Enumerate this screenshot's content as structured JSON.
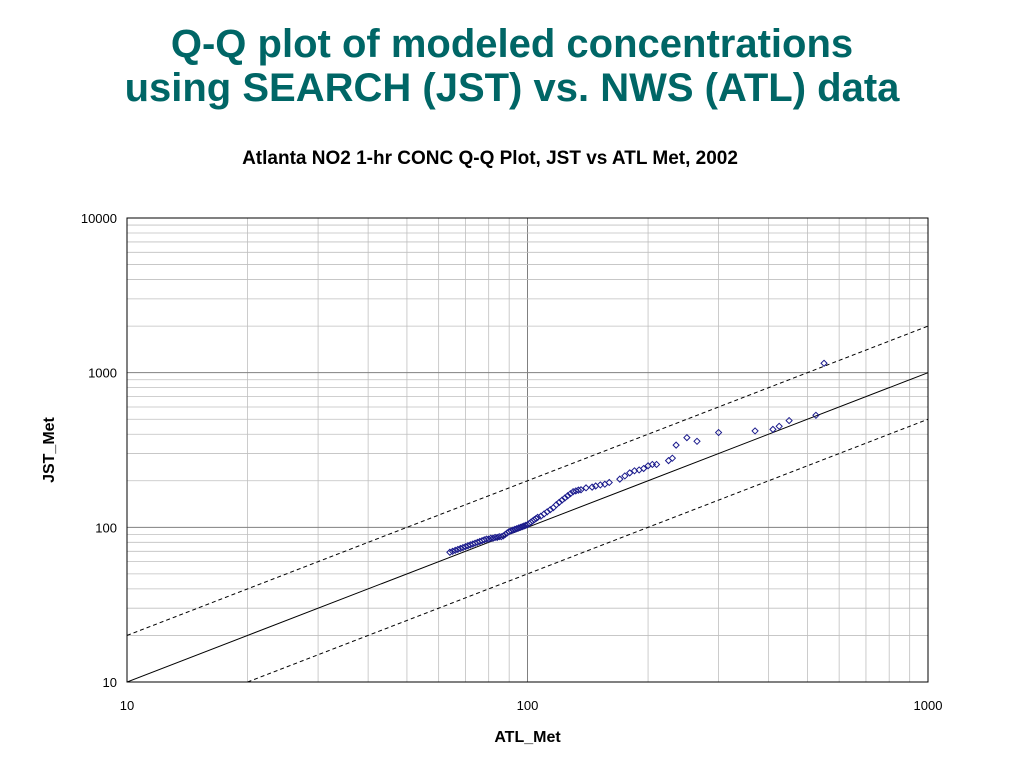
{
  "slide": {
    "title_line1": "Q-Q plot of modeled concentrations",
    "title_line2": "using SEARCH (JST) vs. NWS (ATL) data",
    "title_color": "#006666"
  },
  "chart_data": {
    "type": "scatter",
    "title": "Atlanta NO2 1-hr CONC Q-Q Plot, JST vs ATL Met, 2002",
    "xlabel": "ATL_Met",
    "ylabel": "JST_Met",
    "x_scale": "log",
    "y_scale": "log",
    "xlim": [
      10,
      1000
    ],
    "ylim": [
      10,
      10000
    ],
    "x_ticks": [
      "10",
      "100",
      "1000"
    ],
    "y_ticks": [
      "10",
      "100",
      "1000",
      "10000"
    ],
    "grid": true,
    "legend": "none",
    "marker_color": "#1a1a8c",
    "reference_lines": [
      {
        "name": "1:1",
        "style": "solid",
        "factor": 1
      },
      {
        "name": "factor of 2 upper",
        "style": "dashed",
        "factor": 2
      },
      {
        "name": "factor of 2 lower",
        "style": "dashed",
        "factor": 0.5
      }
    ],
    "series": [
      {
        "marker": "diamond",
        "x": [
          64,
          65,
          66,
          67,
          68,
          69,
          70,
          71,
          72,
          73,
          74,
          75,
          76,
          77,
          78,
          79,
          80,
          81,
          82,
          83,
          84,
          85,
          86,
          87,
          88,
          89,
          90,
          91,
          92,
          93,
          94,
          95,
          96,
          97,
          98,
          99,
          100,
          101,
          102,
          103,
          104,
          105,
          106,
          108,
          110,
          112,
          114,
          116,
          118,
          120,
          122,
          124,
          126,
          128,
          130,
          132,
          134,
          136,
          140,
          145,
          148,
          152,
          156,
          160,
          170,
          175,
          180,
          185,
          190,
          195,
          200,
          205,
          210,
          225,
          230,
          235,
          250,
          265,
          300,
          370,
          410,
          425,
          450,
          525,
          550
        ],
        "y": [
          69,
          70,
          71,
          72,
          73,
          74,
          75,
          76,
          77,
          78,
          79,
          80,
          81,
          82,
          83,
          84,
          84,
          85,
          85,
          86,
          86,
          87,
          87,
          88,
          90,
          92,
          94,
          95,
          96,
          97,
          98,
          99,
          100,
          101,
          102,
          103,
          104,
          106,
          108,
          110,
          112,
          114,
          116,
          118,
          122,
          126,
          130,
          134,
          140,
          145,
          150,
          155,
          160,
          165,
          170,
          172,
          174,
          175,
          180,
          182,
          185,
          188,
          190,
          195,
          205,
          215,
          225,
          232,
          235,
          240,
          250,
          255,
          255,
          270,
          280,
          340,
          380,
          360,
          410,
          420,
          430,
          450,
          490,
          530,
          1150
        ]
      }
    ]
  }
}
